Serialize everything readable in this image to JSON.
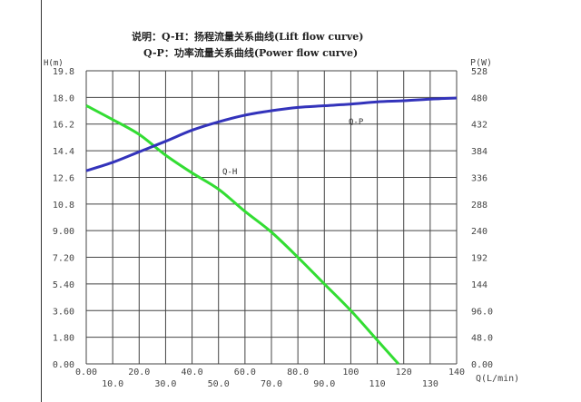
{
  "chart_data": {
    "type": "line",
    "title_lines": [
      "说明：Q-H：扬程流量关系曲线(Lift flow curve)",
      "Q-P：功率流量关系曲线(Power flow curve)"
    ],
    "xlabel": "Q(L/min)",
    "ylabel_left": "H(m)",
    "ylabel_right": "P(W)",
    "xlim": [
      0,
      140
    ],
    "ylim_left": [
      0,
      19.8
    ],
    "ylim_right": [
      0,
      528
    ],
    "grid": true,
    "x_ticks": [
      "0.00",
      "10.0",
      "20.0",
      "30.0",
      "40.0",
      "50.0",
      "60.0",
      "70.0",
      "80.0",
      "90.0",
      "100",
      "110",
      "120",
      "130",
      "140"
    ],
    "y_ticks_left": [
      "0.00",
      "1.80",
      "3.60",
      "5.40",
      "7.20",
      "9.00",
      "10.8",
      "12.6",
      "14.4",
      "16.2",
      "18.0",
      "19.8"
    ],
    "y_ticks_right": [
      "0.00",
      "48.0",
      "96.0",
      "144",
      "192",
      "240",
      "288",
      "336",
      "384",
      "432",
      "480",
      "528"
    ],
    "series": [
      {
        "name": "Q-H",
        "axis": "left",
        "color": "#33dd33",
        "x": [
          0,
          10,
          20,
          30,
          40,
          50,
          60,
          70,
          80,
          90,
          100,
          110,
          118
        ],
        "y": [
          17.45,
          16.5,
          15.5,
          14.1,
          12.9,
          11.8,
          10.3,
          8.9,
          7.2,
          5.4,
          3.6,
          1.6,
          0
        ]
      },
      {
        "name": "Q-P",
        "axis": "right",
        "color": "#3333bb",
        "x": [
          0,
          10,
          20,
          30,
          40,
          50,
          60,
          70,
          80,
          90,
          100,
          110,
          120,
          130,
          140
        ],
        "y": [
          348,
          363,
          382,
          401,
          421,
          436,
          448,
          456,
          462,
          465,
          468,
          472,
          474,
          477,
          479
        ]
      }
    ]
  }
}
